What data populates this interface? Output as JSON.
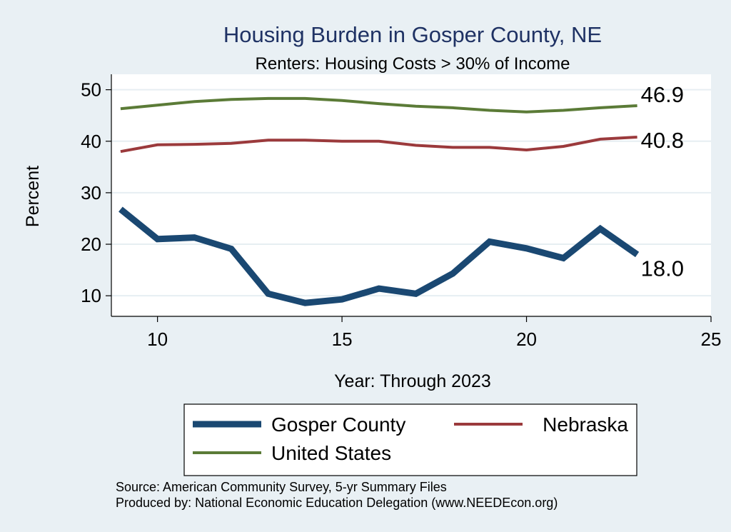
{
  "chart_data": {
    "type": "line",
    "title": "Housing Burden in Gosper County, NE",
    "subtitle": "Renters: Housing Costs > 30% of Income",
    "xlabel": "Year: Through 2023",
    "ylabel": "Percent",
    "xlim": [
      8.75,
      25
    ],
    "ylim": [
      6,
      53
    ],
    "x_ticks": [
      10,
      15,
      20,
      25
    ],
    "y_ticks": [
      10,
      20,
      30,
      40,
      50
    ],
    "x": [
      9,
      10,
      11,
      12,
      13,
      14,
      15,
      16,
      17,
      18,
      19,
      20,
      21,
      22,
      23
    ],
    "series": [
      {
        "name": "Gosper County",
        "color": "#1a4872",
        "values": [
          26.8,
          21.0,
          21.3,
          19.1,
          10.4,
          8.6,
          9.3,
          11.4,
          10.4,
          14.3,
          20.5,
          19.2,
          17.3,
          23.0,
          18.0
        ],
        "end_label": "18.0"
      },
      {
        "name": "Nebraska",
        "color": "#9b3a3c",
        "values": [
          38.0,
          39.3,
          39.4,
          39.6,
          40.2,
          40.2,
          40.0,
          40.0,
          39.2,
          38.8,
          38.8,
          38.3,
          39.0,
          40.4,
          40.8
        ],
        "end_label": "40.8"
      },
      {
        "name": "United States",
        "color": "#5b7b37",
        "values": [
          46.3,
          47.0,
          47.7,
          48.1,
          48.3,
          48.3,
          47.9,
          47.3,
          46.8,
          46.5,
          46.0,
          45.7,
          46.0,
          46.5,
          46.9
        ],
        "end_label": "46.9"
      }
    ],
    "legend": [
      "Gosper County",
      "Nebraska",
      "United States"
    ],
    "grid": true
  },
  "source_note": "Source: American Community Survey, 5-yr Summary Files",
  "produced_by": "Produced by: National Economic Education Delegation (www.NEEDEcon.org)"
}
